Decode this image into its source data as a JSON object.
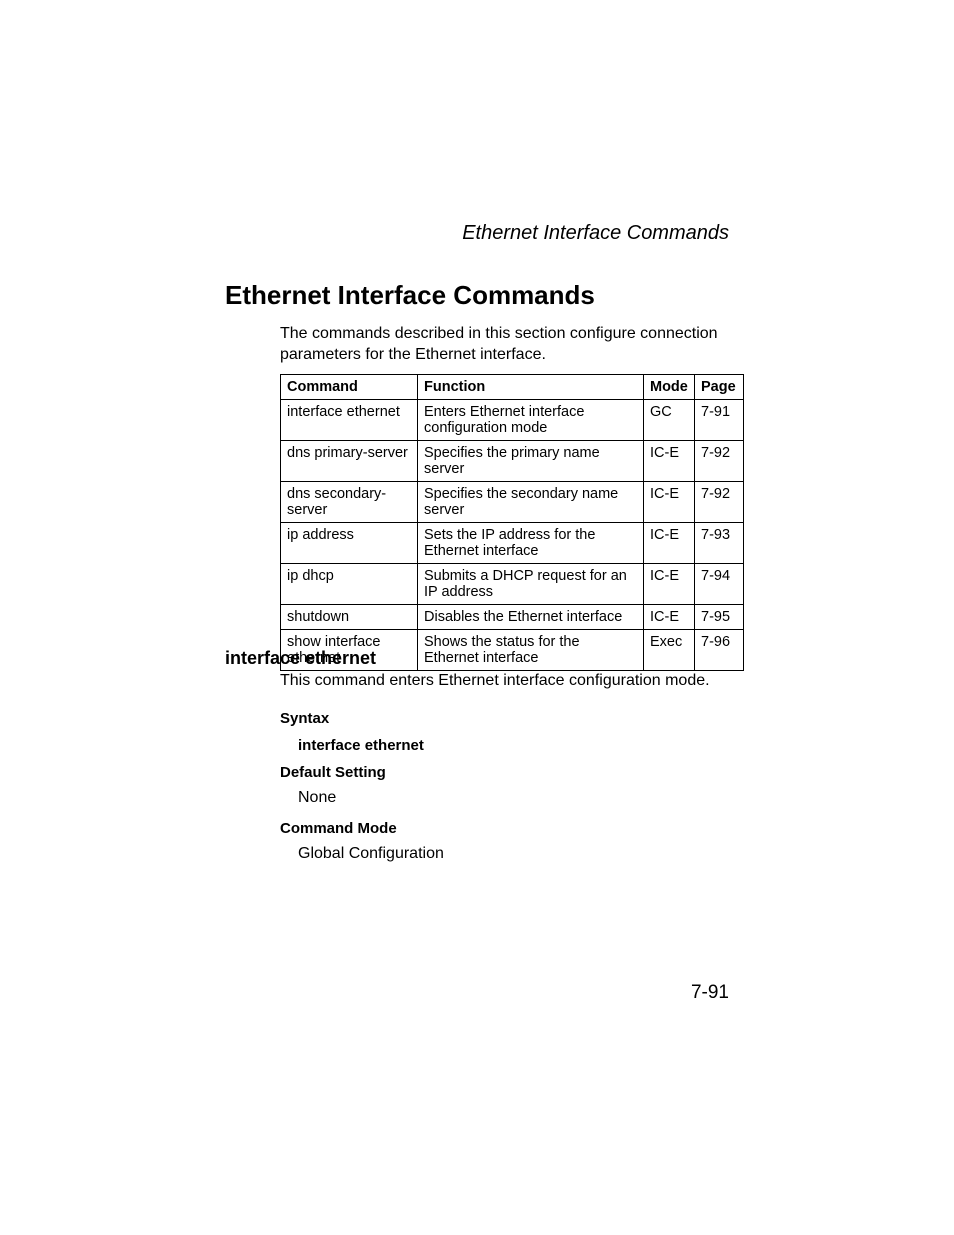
{
  "runningHeader": "Ethernet Interface Commands",
  "mainHeading": "Ethernet Interface Commands",
  "intro": "The commands described in this section configure connection parameters for the Ethernet interface.",
  "table": {
    "headers": {
      "command": "Command",
      "function": "Function",
      "mode": "Mode",
      "page": "Page"
    },
    "rows": [
      {
        "command": "interface ethernet",
        "function": "Enters Ethernet interface configuration mode",
        "mode": "GC",
        "page": "7-91"
      },
      {
        "command": "dns primary-server",
        "function": "Specifies the primary name server",
        "mode": "IC-E",
        "page": "7-92"
      },
      {
        "command": "dns secondary-server",
        "function": "Specifies the secondary name server",
        "mode": "IC-E",
        "page": "7-92"
      },
      {
        "command": "ip address",
        "function": "Sets the IP address for the Ethernet interface",
        "mode": "IC-E",
        "page": "7-93"
      },
      {
        "command": "ip dhcp",
        "function": "Submits a DHCP request for an IP address",
        "mode": "IC-E",
        "page": "7-94"
      },
      {
        "command": "shutdown",
        "function": "Disables the Ethernet interface",
        "mode": "IC-E",
        "page": "7-95"
      },
      {
        "command": "show interface ethernet",
        "function": "Shows the status for the Ethernet interface",
        "mode": "Exec",
        "page": "7-96"
      }
    ]
  },
  "commandDetail": {
    "name": "interface ethernet",
    "description": "This command enters Ethernet interface configuration mode.",
    "syntaxLabel": "Syntax",
    "syntaxValue": "interface ethernet",
    "defaultLabel": "Default Setting",
    "defaultValue": "None",
    "modeLabel": "Command Mode",
    "modeValue": "Global Configuration"
  },
  "pageNumber": "7-91"
}
